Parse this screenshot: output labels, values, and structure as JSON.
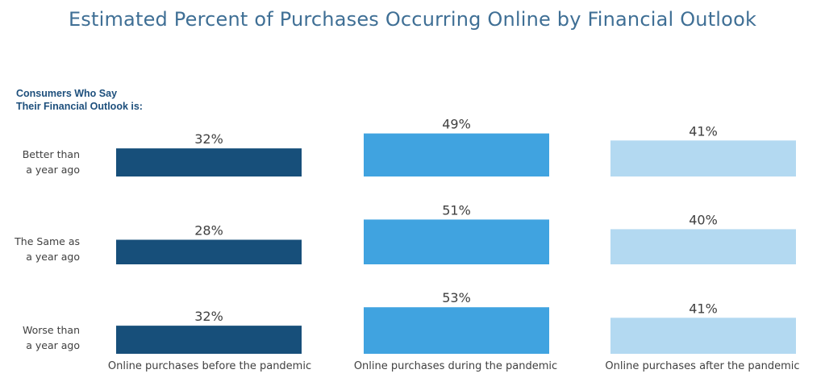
{
  "chart_data": {
    "type": "bar",
    "title": "Estimated Percent of Purchases Occurring Online by Financial Outlook",
    "legend_heading": "Consumers Who Say\nTheir Financial Outlook is:",
    "row_labels": [
      "Better than\na year ago",
      "The Same as\na year ago",
      "Worse than\na year ago"
    ],
    "categories": [
      "Online purchases before the pandemic",
      "Online purchases during the pandemic",
      "Online purchases after the pandemic"
    ],
    "series": [
      {
        "values": [
          32,
          28,
          32
        ],
        "labels": [
          "32%",
          "28%",
          "32%"
        ],
        "color": "#174f7a"
      },
      {
        "values": [
          49,
          51,
          53
        ],
        "labels": [
          "49%",
          "51%",
          "53%"
        ],
        "color": "#40a3e0"
      },
      {
        "values": [
          41,
          40,
          41
        ],
        "labels": [
          "41%",
          "40%",
          "41%"
        ],
        "color": "#b3d9f1"
      }
    ],
    "ylim": [
      0,
      100
    ],
    "grid": false
  }
}
